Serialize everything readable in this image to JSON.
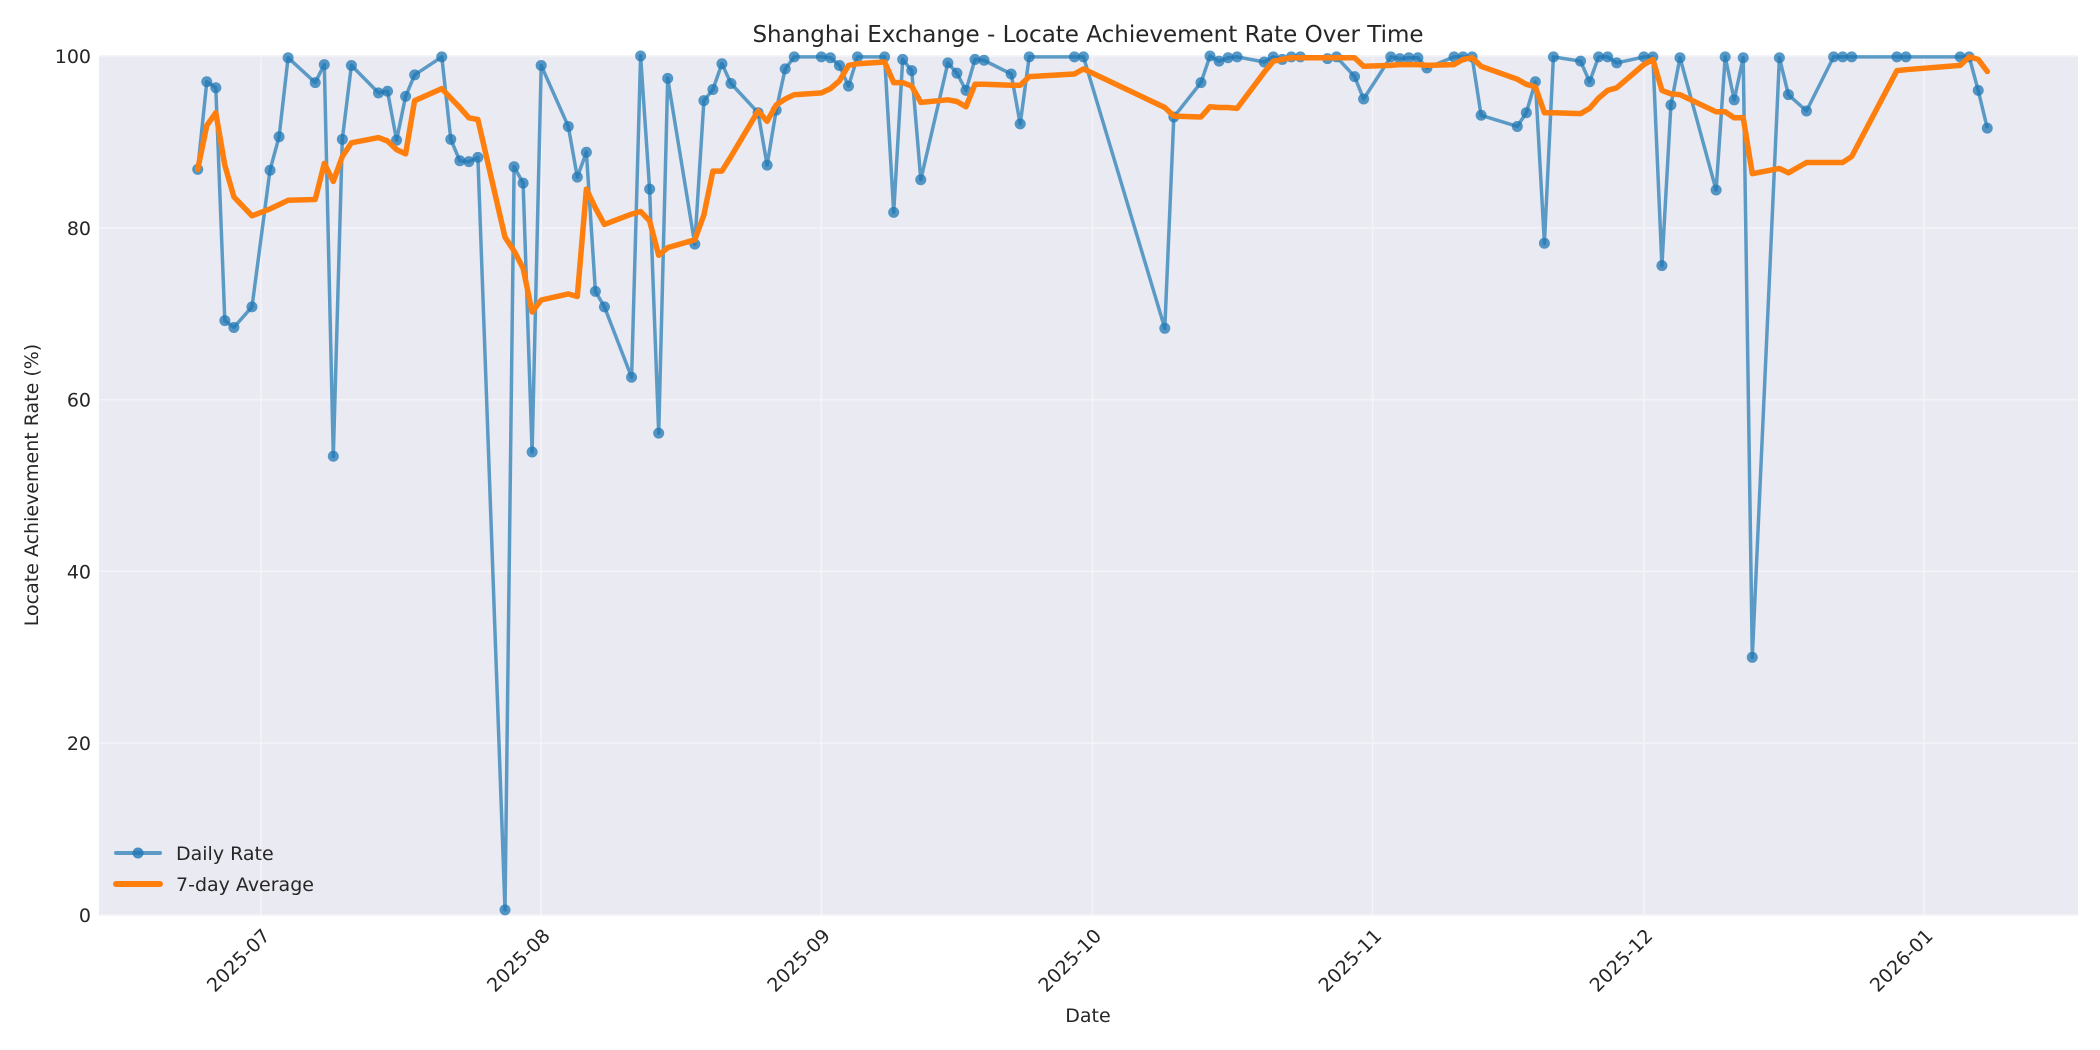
{
  "chart_data": {
    "type": "line",
    "title": "Shanghai Exchange - Locate Achievement Rate Over Time",
    "xlabel": "Date",
    "ylabel": "Locate Achievement Rate (%)",
    "ylim": [
      0,
      100
    ],
    "yticks": [
      0,
      20,
      40,
      60,
      80,
      100
    ],
    "xticks": [
      "2025-07",
      "2025-08",
      "2025-09",
      "2025-10",
      "2025-11",
      "2025-12",
      "2026-01"
    ],
    "xlim": [
      "2025-06-14",
      "2026-01-18"
    ],
    "grid": true,
    "legend_position": "lower left",
    "series": [
      {
        "name": "Daily Rate",
        "color": "#1f77b4",
        "marker": "circle",
        "points": [
          [
            "2025-06-24",
            86.8
          ],
          [
            "2025-06-25",
            97.0
          ],
          [
            "2025-06-26",
            96.3
          ],
          [
            "2025-06-27",
            69.2
          ],
          [
            "2025-06-28",
            68.4
          ],
          [
            "2025-06-30",
            70.8
          ],
          [
            "2025-07-02",
            86.7
          ],
          [
            "2025-07-03",
            90.6
          ],
          [
            "2025-07-04",
            99.8
          ],
          [
            "2025-07-07",
            96.9
          ],
          [
            "2025-07-08",
            99.0
          ],
          [
            "2025-07-09",
            53.4
          ],
          [
            "2025-07-10",
            90.3
          ],
          [
            "2025-07-11",
            98.9
          ],
          [
            "2025-07-14",
            95.7
          ],
          [
            "2025-07-15",
            95.9
          ],
          [
            "2025-07-16",
            90.2
          ],
          [
            "2025-07-17",
            95.3
          ],
          [
            "2025-07-18",
            97.8
          ],
          [
            "2025-07-21",
            99.9
          ],
          [
            "2025-07-22",
            90.3
          ],
          [
            "2025-07-23",
            87.8
          ],
          [
            "2025-07-24",
            87.7
          ],
          [
            "2025-07-25",
            88.2
          ],
          [
            "2025-07-28",
            0.6
          ],
          [
            "2025-07-29",
            87.1
          ],
          [
            "2025-07-30",
            85.2
          ],
          [
            "2025-07-31",
            53.9
          ],
          [
            "2025-08-01",
            98.9
          ],
          [
            "2025-08-04",
            91.8
          ],
          [
            "2025-08-05",
            85.9
          ],
          [
            "2025-08-06",
            88.8
          ],
          [
            "2025-08-07",
            72.6
          ],
          [
            "2025-08-08",
            70.8
          ],
          [
            "2025-08-11",
            62.6
          ],
          [
            "2025-08-12",
            100.0
          ],
          [
            "2025-08-13",
            84.5
          ],
          [
            "2025-08-14",
            56.1
          ],
          [
            "2025-08-15",
            97.4
          ],
          [
            "2025-08-18",
            78.1
          ],
          [
            "2025-08-19",
            94.8
          ],
          [
            "2025-08-20",
            96.1
          ],
          [
            "2025-08-21",
            99.1
          ],
          [
            "2025-08-22",
            96.8
          ],
          [
            "2025-08-25",
            93.4
          ],
          [
            "2025-08-26",
            87.3
          ],
          [
            "2025-08-27",
            93.7
          ],
          [
            "2025-08-28",
            98.5
          ],
          [
            "2025-08-29",
            99.9
          ],
          [
            "2025-09-01",
            99.9
          ],
          [
            "2025-09-02",
            99.8
          ],
          [
            "2025-09-03",
            98.9
          ],
          [
            "2025-09-04",
            96.5
          ],
          [
            "2025-09-05",
            99.9
          ],
          [
            "2025-09-08",
            99.9
          ],
          [
            "2025-09-09",
            81.8
          ],
          [
            "2025-09-10",
            99.6
          ],
          [
            "2025-09-11",
            98.3
          ],
          [
            "2025-09-12",
            85.6
          ],
          [
            "2025-09-15",
            99.2
          ],
          [
            "2025-09-16",
            98.0
          ],
          [
            "2025-09-17",
            96.0
          ],
          [
            "2025-09-18",
            99.6
          ],
          [
            "2025-09-19",
            99.5
          ],
          [
            "2025-09-22",
            97.9
          ],
          [
            "2025-09-23",
            92.1
          ],
          [
            "2025-09-24",
            99.9
          ],
          [
            "2025-09-29",
            99.9
          ],
          [
            "2025-09-30",
            99.9
          ],
          [
            "2025-10-09",
            68.3
          ],
          [
            "2025-10-10",
            92.9
          ],
          [
            "2025-10-13",
            96.9
          ],
          [
            "2025-10-14",
            100.0
          ],
          [
            "2025-10-15",
            99.4
          ],
          [
            "2025-10-16",
            99.8
          ],
          [
            "2025-10-17",
            99.9
          ],
          [
            "2025-10-20",
            99.3
          ],
          [
            "2025-10-21",
            99.9
          ],
          [
            "2025-10-22",
            99.6
          ],
          [
            "2025-10-23",
            99.9
          ],
          [
            "2025-10-24",
            99.9
          ],
          [
            "2025-10-27",
            99.7
          ],
          [
            "2025-10-28",
            99.9
          ],
          [
            "2025-10-30",
            97.6
          ],
          [
            "2025-10-31",
            95.0
          ],
          [
            "2025-11-03",
            99.9
          ],
          [
            "2025-11-04",
            99.7
          ],
          [
            "2025-11-05",
            99.8
          ],
          [
            "2025-11-06",
            99.8
          ],
          [
            "2025-11-07",
            98.6
          ],
          [
            "2025-11-10",
            99.9
          ],
          [
            "2025-11-11",
            99.9
          ],
          [
            "2025-11-12",
            99.9
          ],
          [
            "2025-11-13",
            93.1
          ],
          [
            "2025-11-17",
            91.8
          ],
          [
            "2025-11-18",
            93.4
          ],
          [
            "2025-11-19",
            97.0
          ],
          [
            "2025-11-20",
            78.2
          ],
          [
            "2025-11-21",
            99.9
          ],
          [
            "2025-11-24",
            99.4
          ],
          [
            "2025-11-25",
            97.0
          ],
          [
            "2025-11-26",
            99.9
          ],
          [
            "2025-11-27",
            99.9
          ],
          [
            "2025-11-28",
            99.2
          ],
          [
            "2025-12-01",
            99.9
          ],
          [
            "2025-12-02",
            99.9
          ],
          [
            "2025-12-03",
            75.6
          ],
          [
            "2025-12-04",
            94.3
          ],
          [
            "2025-12-05",
            99.8
          ],
          [
            "2025-12-09",
            84.4
          ],
          [
            "2025-12-10",
            99.9
          ],
          [
            "2025-12-11",
            94.9
          ],
          [
            "2025-12-12",
            99.8
          ],
          [
            "2025-12-13",
            30.0
          ],
          [
            "2025-12-16",
            99.8
          ],
          [
            "2025-12-17",
            95.5
          ],
          [
            "2025-12-19",
            93.6
          ],
          [
            "2025-12-22",
            99.9
          ],
          [
            "2025-12-23",
            99.9
          ],
          [
            "2025-12-24",
            99.9
          ],
          [
            "2025-12-29",
            99.9
          ],
          [
            "2025-12-30",
            99.9
          ],
          [
            "2026-01-05",
            99.9
          ],
          [
            "2026-01-06",
            99.9
          ],
          [
            "2026-01-07",
            96.0
          ],
          [
            "2026-01-08",
            91.6
          ]
        ]
      },
      {
        "name": "7-day Average",
        "color": "#ff7f0e",
        "marker": "none",
        "points": [
          [
            "2025-06-24",
            86.8
          ],
          [
            "2025-06-25",
            91.9
          ],
          [
            "2025-06-26",
            93.4
          ],
          [
            "2025-06-27",
            87.3
          ],
          [
            "2025-06-28",
            83.6
          ],
          [
            "2025-06-30",
            81.4
          ],
          [
            "2025-07-02",
            82.2
          ],
          [
            "2025-07-03",
            82.7
          ],
          [
            "2025-07-04",
            83.2
          ],
          [
            "2025-07-07",
            83.3
          ],
          [
            "2025-07-08",
            87.5
          ],
          [
            "2025-07-09",
            85.4
          ],
          [
            "2025-07-10",
            88.3
          ],
          [
            "2025-07-11",
            89.9
          ],
          [
            "2025-07-14",
            90.5
          ],
          [
            "2025-07-15",
            90.1
          ],
          [
            "2025-07-16",
            89.1
          ],
          [
            "2025-07-17",
            88.6
          ],
          [
            "2025-07-18",
            94.8
          ],
          [
            "2025-07-21",
            96.2
          ],
          [
            "2025-07-22",
            95.1
          ],
          [
            "2025-07-23",
            94.0
          ],
          [
            "2025-07-24",
            92.8
          ],
          [
            "2025-07-25",
            92.6
          ],
          [
            "2025-07-28",
            78.9
          ],
          [
            "2025-07-29",
            77.3
          ],
          [
            "2025-07-30",
            75.3
          ],
          [
            "2025-07-31",
            70.2
          ],
          [
            "2025-08-01",
            71.6
          ],
          [
            "2025-08-04",
            72.3
          ],
          [
            "2025-08-05",
            72.0
          ],
          [
            "2025-08-06",
            84.5
          ],
          [
            "2025-08-07",
            82.3
          ],
          [
            "2025-08-08",
            80.4
          ],
          [
            "2025-08-11",
            81.6
          ],
          [
            "2025-08-12",
            81.9
          ],
          [
            "2025-08-13",
            80.8
          ],
          [
            "2025-08-14",
            76.8
          ],
          [
            "2025-08-15",
            77.7
          ],
          [
            "2025-08-18",
            78.6
          ],
          [
            "2025-08-19",
            81.5
          ],
          [
            "2025-08-20",
            86.6
          ],
          [
            "2025-08-21",
            86.6
          ],
          [
            "2025-08-22",
            88.3
          ],
          [
            "2025-08-25",
            93.6
          ],
          [
            "2025-08-26",
            92.4
          ],
          [
            "2025-08-27",
            94.3
          ],
          [
            "2025-08-28",
            95.0
          ],
          [
            "2025-08-29",
            95.5
          ],
          [
            "2025-09-01",
            95.7
          ],
          [
            "2025-09-02",
            96.2
          ],
          [
            "2025-09-03",
            97.1
          ],
          [
            "2025-09-04",
            98.9
          ],
          [
            "2025-09-05",
            99.1
          ],
          [
            "2025-09-08",
            99.3
          ],
          [
            "2025-09-09",
            96.9
          ],
          [
            "2025-09-10",
            96.9
          ],
          [
            "2025-09-11",
            96.5
          ],
          [
            "2025-09-12",
            94.6
          ],
          [
            "2025-09-15",
            94.9
          ],
          [
            "2025-09-16",
            94.7
          ],
          [
            "2025-09-17",
            94.1
          ],
          [
            "2025-09-18",
            96.7
          ],
          [
            "2025-09-19",
            96.7
          ],
          [
            "2025-09-22",
            96.6
          ],
          [
            "2025-09-23",
            96.6
          ],
          [
            "2025-09-24",
            97.6
          ],
          [
            "2025-09-29",
            97.9
          ],
          [
            "2025-09-30",
            98.5
          ],
          [
            "2025-10-09",
            94.0
          ],
          [
            "2025-10-10",
            93.0
          ],
          [
            "2025-10-13",
            92.9
          ],
          [
            "2025-10-14",
            94.1
          ],
          [
            "2025-10-15",
            94.0
          ],
          [
            "2025-10-16",
            94.0
          ],
          [
            "2025-10-17",
            93.9
          ],
          [
            "2025-10-20",
            98.1
          ],
          [
            "2025-10-21",
            99.4
          ],
          [
            "2025-10-22",
            99.6
          ],
          [
            "2025-10-23",
            99.8
          ],
          [
            "2025-10-24",
            99.8
          ],
          [
            "2025-10-27",
            99.8
          ],
          [
            "2025-10-28",
            99.8
          ],
          [
            "2025-10-30",
            99.8
          ],
          [
            "2025-10-31",
            98.8
          ],
          [
            "2025-11-03",
            98.9
          ],
          [
            "2025-11-04",
            99.0
          ],
          [
            "2025-11-05",
            99.0
          ],
          [
            "2025-11-06",
            99.0
          ],
          [
            "2025-11-07",
            98.9
          ],
          [
            "2025-11-10",
            99.0
          ],
          [
            "2025-11-11",
            99.6
          ],
          [
            "2025-11-12",
            99.8
          ],
          [
            "2025-11-13",
            98.8
          ],
          [
            "2025-11-17",
            97.3
          ],
          [
            "2025-11-18",
            96.7
          ],
          [
            "2025-11-19",
            96.4
          ],
          [
            "2025-11-20",
            93.4
          ],
          [
            "2025-11-21",
            93.4
          ],
          [
            "2025-11-24",
            93.3
          ],
          [
            "2025-11-25",
            93.9
          ],
          [
            "2025-11-26",
            95.1
          ],
          [
            "2025-11-27",
            96.0
          ],
          [
            "2025-11-28",
            96.3
          ],
          [
            "2025-12-01",
            99.0
          ],
          [
            "2025-12-02",
            99.6
          ],
          [
            "2025-12-03",
            96.0
          ],
          [
            "2025-12-04",
            95.6
          ],
          [
            "2025-12-05",
            95.5
          ],
          [
            "2025-12-09",
            93.5
          ],
          [
            "2025-12-10",
            93.5
          ],
          [
            "2025-12-11",
            92.8
          ],
          [
            "2025-12-12",
            92.8
          ],
          [
            "2025-12-13",
            86.3
          ],
          [
            "2025-12-16",
            86.9
          ],
          [
            "2025-12-17",
            86.4
          ],
          [
            "2025-12-19",
            87.6
          ],
          [
            "2025-12-22",
            87.6
          ],
          [
            "2025-12-23",
            87.6
          ],
          [
            "2025-12-24",
            88.3
          ],
          [
            "2025-12-29",
            98.3
          ],
          [
            "2025-12-30",
            98.4
          ],
          [
            "2026-01-05",
            98.9
          ],
          [
            "2026-01-06",
            99.9
          ],
          [
            "2026-01-07",
            99.6
          ],
          [
            "2026-01-08",
            98.2
          ]
        ]
      }
    ]
  },
  "layout": {
    "plot_bg": "#eaeaf2",
    "grid_color": "#f4f4f8"
  }
}
